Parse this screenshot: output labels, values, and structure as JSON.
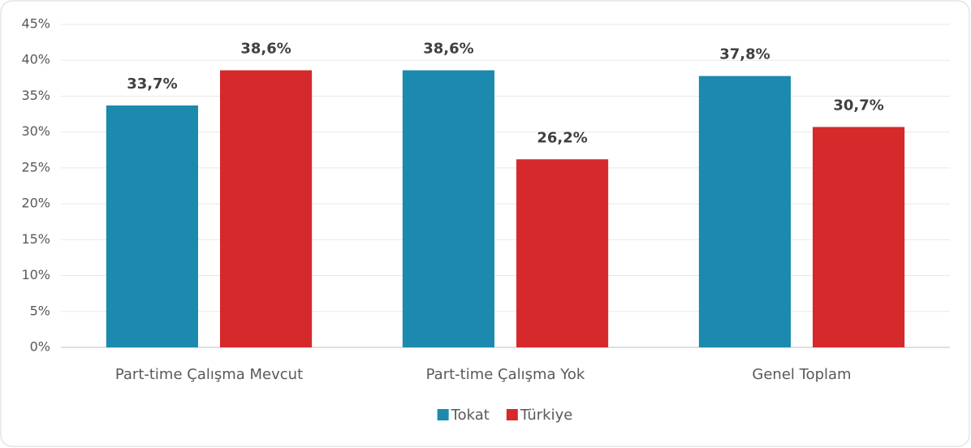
{
  "chart_data": {
    "type": "bar",
    "categories": [
      "Part-time Çalışma Mevcut",
      "Part-time Çalışma Yok",
      "Genel Toplam"
    ],
    "series": [
      {
        "name": "Tokat",
        "color": "#1b8aae",
        "values": [
          33.7,
          38.6,
          37.8
        ],
        "value_labels": [
          "33,7%",
          "38,6%",
          "37,8%"
        ]
      },
      {
        "name": "Türkiye",
        "color": "#d5292b",
        "values": [
          38.6,
          26.2,
          30.7
        ],
        "value_labels": [
          "38,6%",
          "26,2%",
          "30,7%"
        ]
      }
    ],
    "ylim": [
      0,
      45
    ],
    "yticks": [
      {
        "value": 0,
        "label": "0%"
      },
      {
        "value": 5,
        "label": "5%"
      },
      {
        "value": 10,
        "label": "10%"
      },
      {
        "value": 15,
        "label": "15%"
      },
      {
        "value": 20,
        "label": "20%"
      },
      {
        "value": 25,
        "label": "25%"
      },
      {
        "value": 30,
        "label": "30%"
      },
      {
        "value": 35,
        "label": "35%"
      },
      {
        "value": 40,
        "label": "40%"
      },
      {
        "value": 45,
        "label": "45%"
      }
    ],
    "grid": true,
    "legend": "bottom"
  }
}
